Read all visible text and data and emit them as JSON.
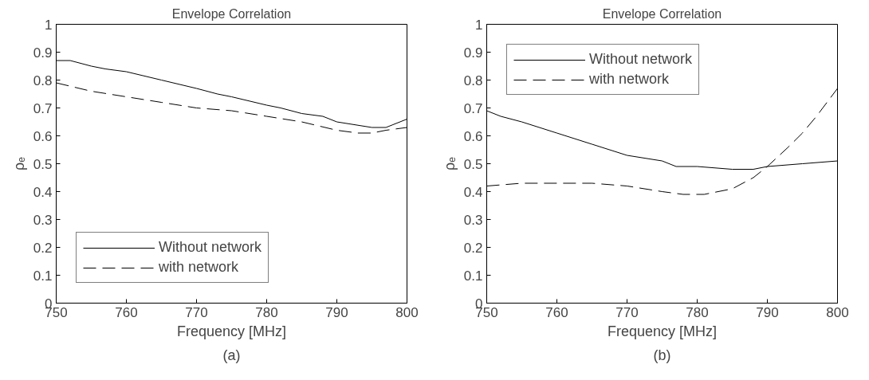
{
  "chart_data": [
    {
      "type": "line",
      "title": "Envelope Correlation",
      "xlabel": "Frequency [MHz]",
      "ylabel": "ρₑ",
      "annotations": [
        "(a)"
      ],
      "xlim": [
        750,
        800
      ],
      "ylim": [
        0,
        1
      ],
      "xticks": [
        750,
        760,
        770,
        780,
        790,
        800
      ],
      "yticks": [
        0,
        0.1,
        0.2,
        0.3,
        0.4,
        0.5,
        0.6,
        0.7,
        0.8,
        0.9,
        1
      ],
      "grid": false,
      "legend": "bottom left",
      "series": [
        {
          "name": "Without network",
          "color": "#000000",
          "line_style": "solid",
          "x": [
            750,
            752,
            755,
            757,
            760,
            765,
            770,
            773,
            775,
            780,
            782,
            785,
            788,
            790,
            795,
            797,
            798,
            800
          ],
          "values": [
            0.87,
            0.87,
            0.85,
            0.84,
            0.83,
            0.8,
            0.77,
            0.75,
            0.74,
            0.71,
            0.7,
            0.68,
            0.67,
            0.65,
            0.63,
            0.63,
            0.64,
            0.66
          ]
        },
        {
          "name": "with network",
          "color": "#000000",
          "line_style": "dashed",
          "x": [
            750,
            755,
            760,
            765,
            770,
            775,
            780,
            785,
            790,
            793,
            795,
            797,
            800
          ],
          "values": [
            0.79,
            0.76,
            0.74,
            0.72,
            0.7,
            0.69,
            0.67,
            0.65,
            0.62,
            0.61,
            0.61,
            0.62,
            0.63
          ]
        }
      ]
    },
    {
      "type": "line",
      "title": "Envelope Correlation",
      "xlabel": "Frequency [MHz]",
      "ylabel": "ρₑ",
      "annotations": [
        "(b)"
      ],
      "xlim": [
        750,
        800
      ],
      "ylim": [
        0,
        1
      ],
      "xticks": [
        750,
        760,
        770,
        780,
        790,
        800
      ],
      "yticks": [
        0,
        0.1,
        0.2,
        0.3,
        0.4,
        0.5,
        0.6,
        0.7,
        0.8,
        0.9,
        1
      ],
      "grid": false,
      "legend": "top left",
      "series": [
        {
          "name": "Without network",
          "color": "#000000",
          "line_style": "solid",
          "x": [
            750,
            752,
            755,
            760,
            765,
            770,
            775,
            777,
            780,
            785,
            788,
            790,
            795,
            800
          ],
          "values": [
            0.69,
            0.67,
            0.65,
            0.61,
            0.57,
            0.53,
            0.51,
            0.49,
            0.49,
            0.48,
            0.48,
            0.49,
            0.5,
            0.51
          ]
        },
        {
          "name": "with network",
          "color": "#000000",
          "line_style": "dashed",
          "x": [
            750,
            755,
            760,
            765,
            770,
            775,
            778,
            781,
            785,
            788,
            790,
            793,
            795,
            797,
            800
          ],
          "values": [
            0.42,
            0.43,
            0.43,
            0.43,
            0.42,
            0.4,
            0.39,
            0.39,
            0.41,
            0.45,
            0.49,
            0.56,
            0.61,
            0.67,
            0.77
          ]
        }
      ]
    }
  ]
}
